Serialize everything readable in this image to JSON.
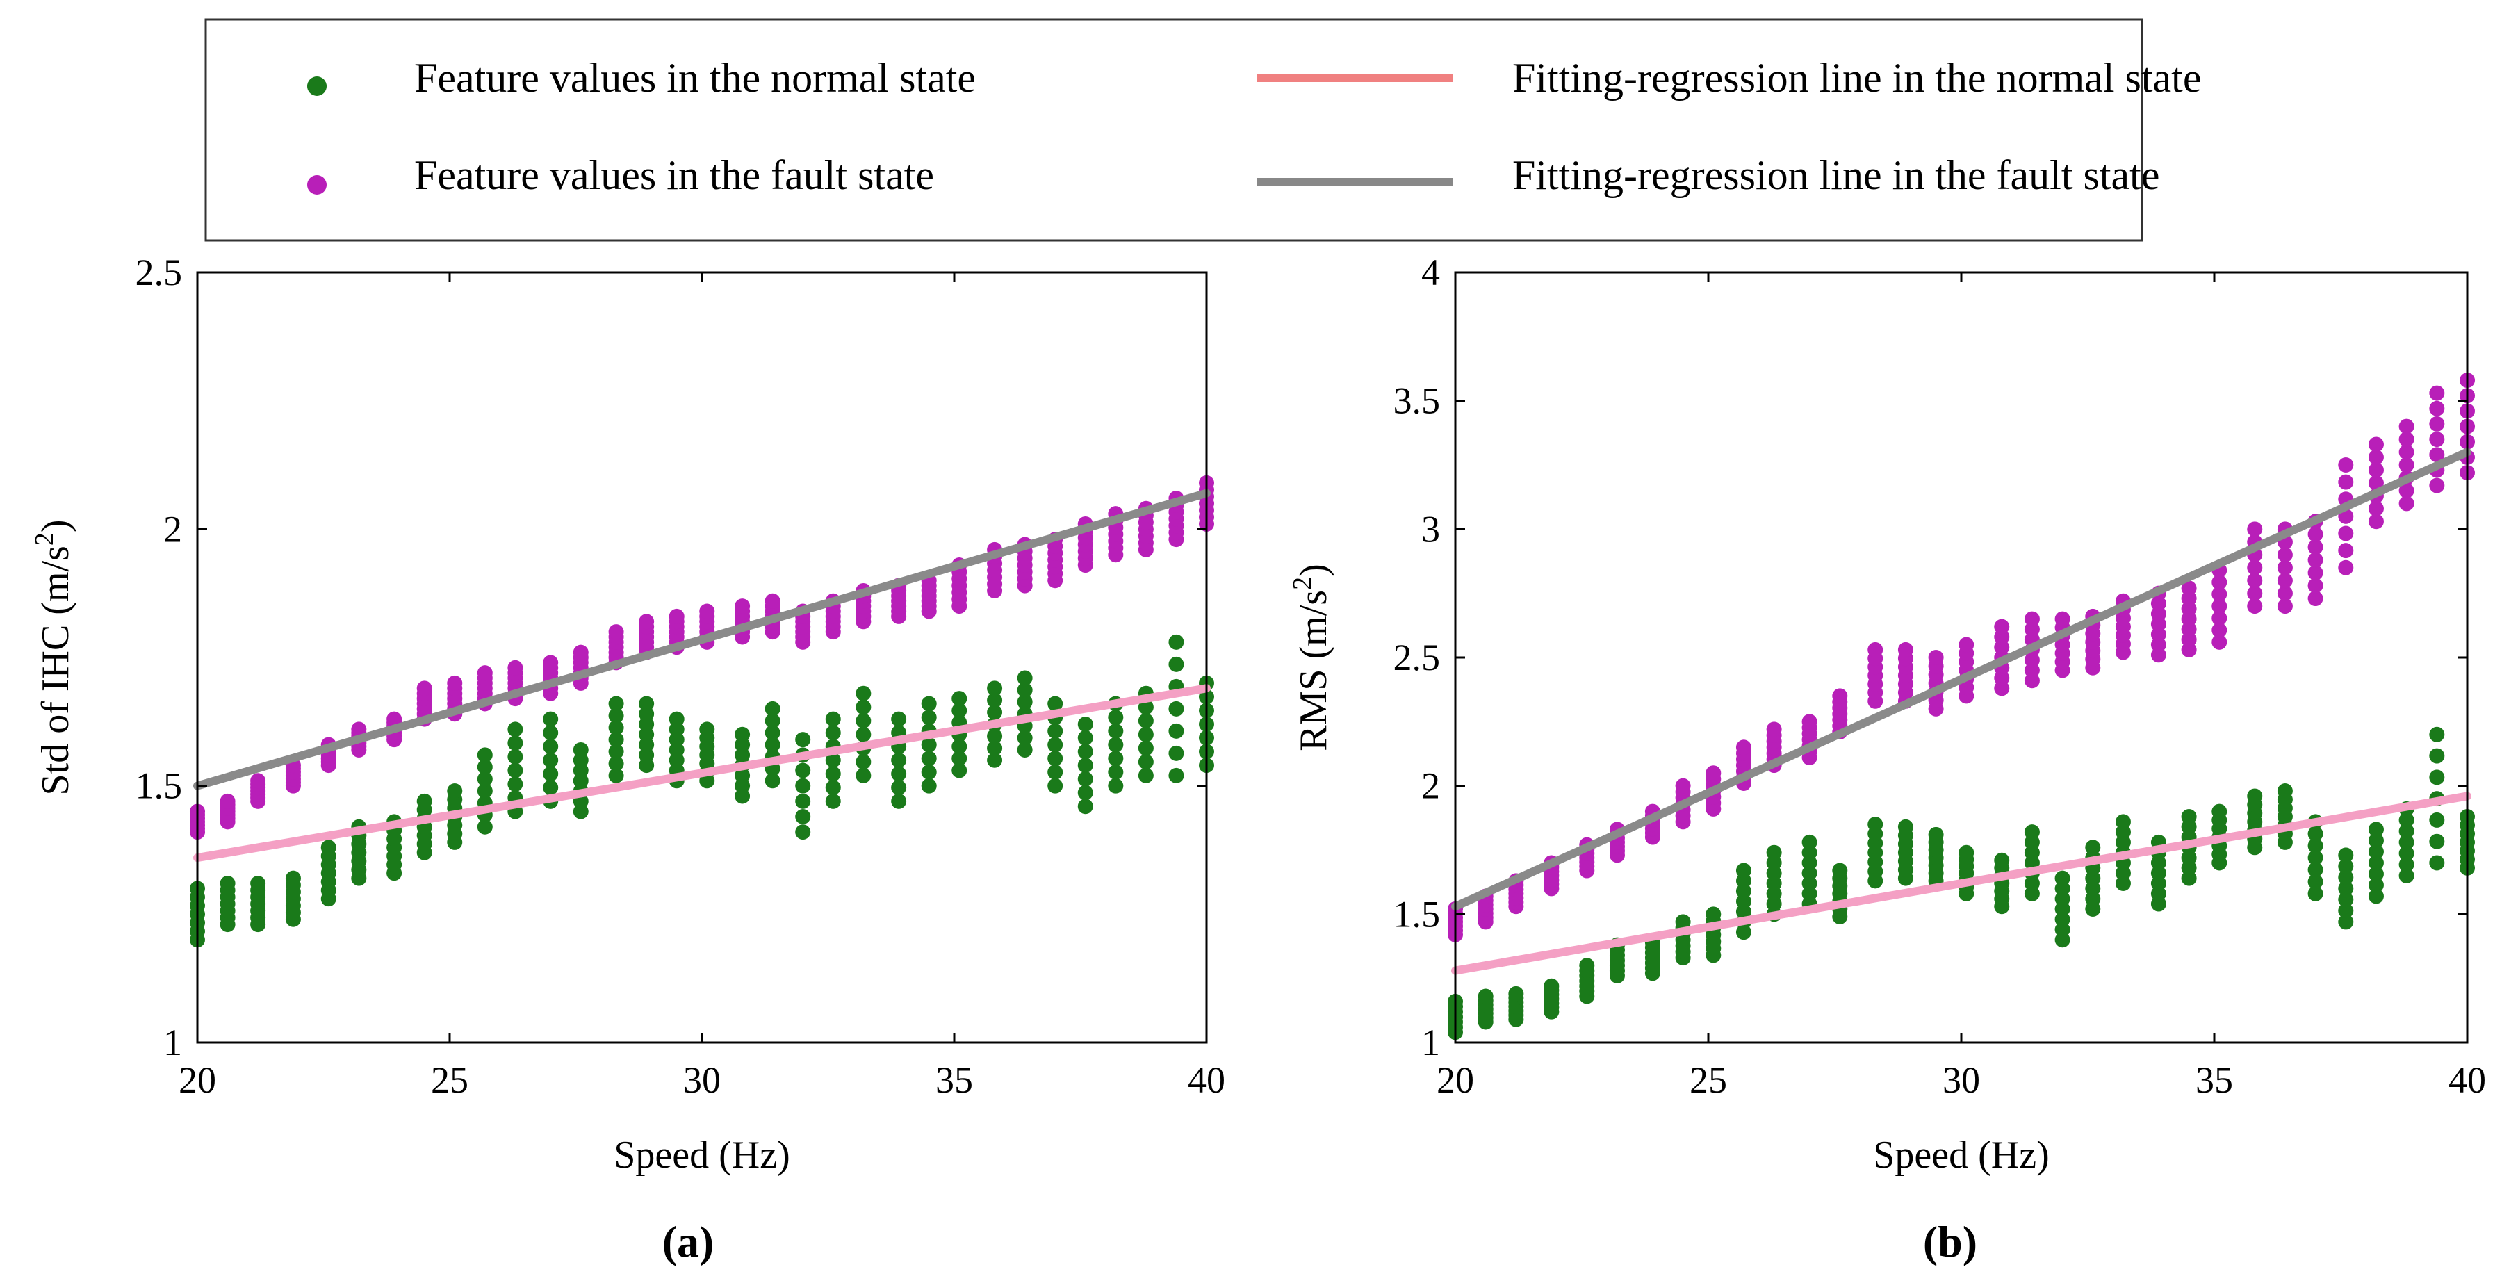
{
  "legend": {
    "items": [
      {
        "label": "Feature values in the normal state",
        "kind": "marker",
        "color": "#1a7a1a"
      },
      {
        "label": "Feature values in the fault state",
        "kind": "marker",
        "color": "#b81fb8"
      },
      {
        "label": "Fitting-regression line in the normal state",
        "kind": "line",
        "color": "#f08080"
      },
      {
        "label": "Fitting-regression line in the fault state",
        "kind": "line",
        "color": "#888888"
      }
    ]
  },
  "colors": {
    "normal_points": "#1a7a1a",
    "fault_points": "#b81fb8",
    "normal_line": "#f4a0c4",
    "fault_line": "#8a8a8a"
  },
  "chart_data": [
    {
      "type": "scatter",
      "panel_label": "(a)",
      "title": "",
      "xlabel": "Speed (Hz)",
      "ylabel_main": "Std of IHC (m/s",
      "ylabel_sup": "2",
      "ylabel_close": ")",
      "xlim": [
        20,
        40
      ],
      "ylim": [
        1,
        2.5
      ],
      "xticks": [
        "20",
        "25",
        "30",
        "35",
        "40"
      ],
      "yticks": [
        "1",
        "1.5",
        "2",
        "2.5"
      ],
      "series": [
        {
          "name": "Feature values in the normal state",
          "x": [
            20,
            20.6,
            21.2,
            21.9,
            22.6,
            23.2,
            23.9,
            24.5,
            25.1,
            25.7,
            26.3,
            27.0,
            27.6,
            28.3,
            28.9,
            29.5,
            30.1,
            30.8,
            31.4,
            32.0,
            32.6,
            33.2,
            33.9,
            34.5,
            35.1,
            35.8,
            36.4,
            37.0,
            37.6,
            38.2,
            38.8,
            39.4,
            40
          ],
          "y": [
            1.25,
            1.27,
            1.27,
            1.28,
            1.33,
            1.37,
            1.38,
            1.42,
            1.44,
            1.49,
            1.53,
            1.55,
            1.51,
            1.59,
            1.6,
            1.57,
            1.56,
            1.54,
            1.58,
            1.5,
            1.55,
            1.6,
            1.55,
            1.58,
            1.6,
            1.62,
            1.64,
            1.58,
            1.54,
            1.58,
            1.6,
            1.65,
            1.62
          ],
          "spread": [
            0.05,
            0.04,
            0.04,
            0.04,
            0.05,
            0.05,
            0.05,
            0.05,
            0.05,
            0.07,
            0.08,
            0.08,
            0.06,
            0.07,
            0.06,
            0.06,
            0.05,
            0.06,
            0.07,
            0.09,
            0.08,
            0.08,
            0.08,
            0.08,
            0.07,
            0.07,
            0.07,
            0.08,
            0.08,
            0.08,
            0.08,
            0.13,
            0.08
          ]
        },
        {
          "name": "Feature values in the fault state",
          "x": [
            20,
            20.6,
            21.2,
            21.9,
            22.6,
            23.2,
            23.9,
            24.5,
            25.1,
            25.7,
            26.3,
            27.0,
            27.6,
            28.3,
            28.9,
            29.5,
            30.1,
            30.8,
            31.4,
            32.0,
            32.6,
            33.2,
            33.9,
            34.5,
            35.1,
            35.8,
            36.4,
            37.0,
            37.6,
            38.2,
            38.8,
            39.4,
            40
          ],
          "y": [
            1.43,
            1.45,
            1.49,
            1.52,
            1.56,
            1.59,
            1.61,
            1.66,
            1.67,
            1.69,
            1.7,
            1.71,
            1.73,
            1.77,
            1.79,
            1.8,
            1.81,
            1.82,
            1.83,
            1.81,
            1.83,
            1.85,
            1.86,
            1.87,
            1.89,
            1.92,
            1.93,
            1.94,
            1.97,
            1.99,
            2.0,
            2.02,
            2.05
          ],
          "spread": [
            0.02,
            0.02,
            0.02,
            0.02,
            0.02,
            0.02,
            0.02,
            0.03,
            0.03,
            0.03,
            0.03,
            0.03,
            0.03,
            0.03,
            0.03,
            0.03,
            0.03,
            0.03,
            0.03,
            0.03,
            0.03,
            0.03,
            0.03,
            0.03,
            0.04,
            0.04,
            0.04,
            0.04,
            0.04,
            0.04,
            0.04,
            0.04,
            0.04
          ]
        }
      ],
      "regression": [
        {
          "name": "Fitting-regression line in the normal state",
          "x": [
            20,
            40
          ],
          "y": [
            1.36,
            1.69
          ]
        },
        {
          "name": "Fitting-regression line in the fault state",
          "x": [
            20,
            40
          ],
          "y": [
            1.5,
            2.07
          ]
        }
      ]
    },
    {
      "type": "scatter",
      "panel_label": "(b)",
      "title": "",
      "xlabel": "Speed (Hz)",
      "ylabel_main": "RMS (m/s",
      "ylabel_sup": "2",
      "ylabel_close": ")",
      "xlim": [
        20,
        40
      ],
      "ylim": [
        1,
        4
      ],
      "xticks": [
        "20",
        "25",
        "30",
        "35",
        "40"
      ],
      "yticks": [
        "1",
        "1.5",
        "2",
        "2.5",
        "3",
        "3.5",
        "4"
      ],
      "series": [
        {
          "name": "Feature values in the normal state",
          "x": [
            20,
            20.6,
            21.2,
            21.9,
            22.6,
            23.2,
            23.9,
            24.5,
            25.1,
            25.7,
            26.3,
            27.0,
            27.6,
            28.3,
            28.9,
            29.5,
            30.1,
            30.8,
            31.4,
            32.0,
            32.6,
            33.2,
            33.9,
            34.5,
            35.1,
            35.8,
            36.4,
            37.0,
            37.6,
            38.2,
            38.8,
            39.4,
            40
          ],
          "y": [
            1.1,
            1.13,
            1.14,
            1.17,
            1.24,
            1.32,
            1.33,
            1.4,
            1.42,
            1.55,
            1.62,
            1.66,
            1.58,
            1.74,
            1.74,
            1.72,
            1.66,
            1.62,
            1.7,
            1.52,
            1.64,
            1.74,
            1.66,
            1.76,
            1.8,
            1.86,
            1.88,
            1.72,
            1.6,
            1.7,
            1.78,
            1.95,
            1.78
          ],
          "spread": [
            0.06,
            0.05,
            0.05,
            0.05,
            0.06,
            0.06,
            0.06,
            0.07,
            0.08,
            0.12,
            0.12,
            0.12,
            0.09,
            0.11,
            0.1,
            0.09,
            0.08,
            0.09,
            0.12,
            0.12,
            0.12,
            0.12,
            0.12,
            0.12,
            0.1,
            0.1,
            0.1,
            0.14,
            0.13,
            0.13,
            0.13,
            0.25,
            0.1
          ]
        },
        {
          "name": "Feature values in the fault state",
          "x": [
            20,
            20.6,
            21.2,
            21.9,
            22.6,
            23.2,
            23.9,
            24.5,
            25.1,
            25.7,
            26.3,
            27.0,
            27.6,
            28.3,
            28.9,
            29.5,
            30.1,
            30.8,
            31.4,
            32.0,
            32.6,
            33.2,
            33.9,
            34.5,
            35.1,
            35.8,
            36.4,
            37.0,
            37.6,
            38.2,
            38.8,
            39.4,
            40
          ],
          "y": [
            1.47,
            1.52,
            1.58,
            1.65,
            1.72,
            1.78,
            1.85,
            1.93,
            1.98,
            2.08,
            2.15,
            2.18,
            2.28,
            2.43,
            2.43,
            2.4,
            2.45,
            2.5,
            2.53,
            2.55,
            2.56,
            2.62,
            2.63,
            2.65,
            2.7,
            2.85,
            2.85,
            2.88,
            3.05,
            3.18,
            3.25,
            3.35,
            3.4
          ],
          "spread": [
            0.05,
            0.05,
            0.05,
            0.05,
            0.05,
            0.05,
            0.05,
            0.07,
            0.07,
            0.07,
            0.07,
            0.07,
            0.07,
            0.1,
            0.1,
            0.1,
            0.1,
            0.12,
            0.12,
            0.1,
            0.1,
            0.1,
            0.12,
            0.12,
            0.14,
            0.15,
            0.15,
            0.15,
            0.2,
            0.15,
            0.15,
            0.18,
            0.18
          ]
        }
      ],
      "regression": [
        {
          "name": "Fitting-regression line in the normal state",
          "x": [
            20,
            40
          ],
          "y": [
            1.28,
            1.96
          ]
        },
        {
          "name": "Fitting-regression line in the fault state",
          "x": [
            20,
            40
          ],
          "y": [
            1.53,
            3.3
          ]
        }
      ]
    }
  ]
}
